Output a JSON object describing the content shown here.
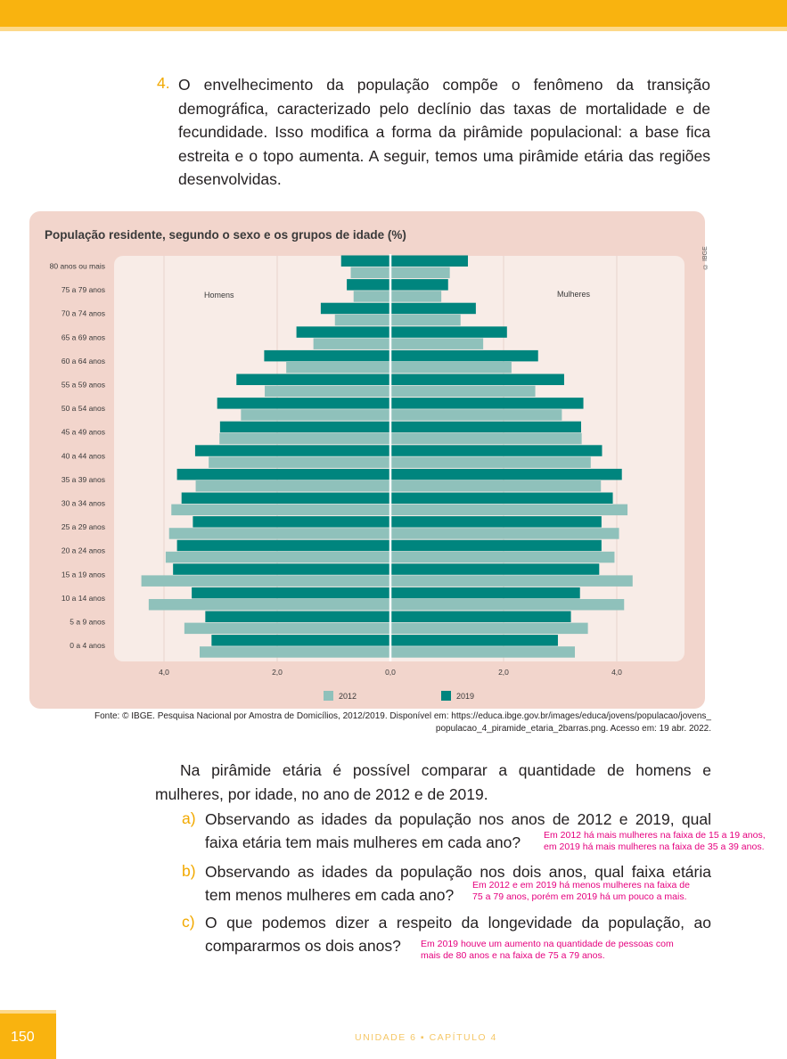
{
  "question": {
    "number": "4.",
    "text": "O envelhecimento da população compõe o fenômeno da transição demográfica, caracterizado pelo declínio das taxas de mortalidade e de fecundidade. Isso modifica a forma da pirâmide populacional: a base fica estreita e o topo aumenta. A seguir, temos uma pirâmide etária das regiões desenvolvidas."
  },
  "chart_data": {
    "type": "bar",
    "orientation": "horizontal-pyramid",
    "title": "População residente, segundo o sexo e os grupos de idade (%)",
    "credit": "© IBGE",
    "left_label": "Homens",
    "right_label": "Mulheres",
    "categories": [
      "80 anos ou mais",
      "75 a 79 anos",
      "70 a 74 anos",
      "65 a 69 anos",
      "60 a 64 anos",
      "55 a 59 anos",
      "50 a 54 anos",
      "45 a 49 anos",
      "40 a 44 anos",
      "35 a 39 anos",
      "30 a 34 anos",
      "25 a 29 anos",
      "20 a 24 anos",
      "15 a 19 anos",
      "10 a 14 anos",
      "5 a 9 anos",
      "0 a 4 anos"
    ],
    "x_ticks": [
      "4,0",
      "2,0",
      "0,0",
      "2,0",
      "4,0"
    ],
    "xlim": [
      -4.0,
      4.0
    ],
    "legend_placement": "bottom-center",
    "series": [
      {
        "name": "2012",
        "color": "#8fc1bb",
        "men": [
          0.7,
          0.65,
          0.98,
          1.36,
          1.84,
          2.22,
          2.64,
          3.02,
          3.21,
          3.44,
          3.87,
          3.91,
          3.97,
          4.4,
          4.27,
          3.64,
          3.37
        ],
        "women": [
          1.05,
          0.9,
          1.24,
          1.64,
          2.14,
          2.56,
          3.03,
          3.38,
          3.54,
          3.72,
          4.19,
          4.04,
          3.96,
          4.28,
          4.13,
          3.49,
          3.26
        ]
      },
      {
        "name": "2019",
        "color": "#00857e",
        "men": [
          0.87,
          0.77,
          1.23,
          1.66,
          2.23,
          2.72,
          3.06,
          3.01,
          3.45,
          3.77,
          3.69,
          3.49,
          3.77,
          3.84,
          3.51,
          3.27,
          3.16
        ],
        "women": [
          1.37,
          1.02,
          1.51,
          2.06,
          2.61,
          3.07,
          3.41,
          3.37,
          3.74,
          4.09,
          3.93,
          3.73,
          3.73,
          3.69,
          3.35,
          3.19,
          2.96
        ]
      }
    ]
  },
  "source": {
    "line1": "Fonte: © IBGE. Pesquisa Nacional por Amostra de Domicílios, 2012/2019. Disponível em: https://educa.ibge.gov.br/images/educa/jovens/populacao/jovens_",
    "line2": "populacao_4_piramide_etaria_2barras.png. Acesso em: 19 abr. 2022."
  },
  "paragraph": "Na pirâmide etária é possível comparar a quantidade de homens e mulheres, por idade, no ano de 2012 e de 2019.",
  "items": [
    {
      "letter": "a)",
      "line1": "Observando as idades da população nos anos de 2012 e 2019, qual",
      "line2": "faixa etária tem mais mulheres em cada ano?",
      "answer1": "Em 2012 há mais mulheres na faixa de 15 a 19 anos,",
      "answer2": "em 2019 há mais mulheres na faixa de 35 a 39 anos."
    },
    {
      "letter": "b)",
      "line1": "Observando as idades da população nos dois anos, qual faixa etária",
      "line2": "tem menos mulheres em cada ano?",
      "answer1": "Em 2012 e em 2019 há menos mulheres na faixa de",
      "answer2": "75 a 79 anos, porém em 2019 há um pouco a mais."
    },
    {
      "letter": "c)",
      "line1": "O que podemos dizer a respeito da longevidade da população, ao",
      "line2": "compararmos os dois anos?",
      "answer1": "Em 2019 houve um aumento na quantidade de pessoas com",
      "answer2": "mais de 80 anos e na faixa de 75 a 79 anos."
    }
  ],
  "footer": {
    "page_number": "150",
    "unit": "UNIDADE 6  ▪  CAPÍTULO 4"
  }
}
